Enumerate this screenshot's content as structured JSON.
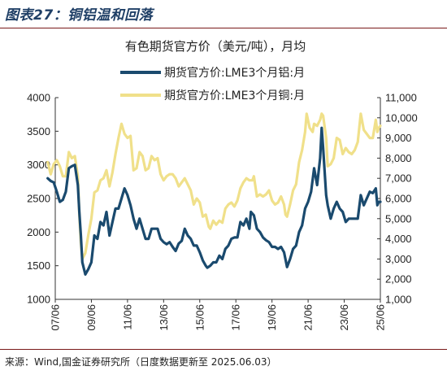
{
  "figure": {
    "title": "图表27：铜铝温和回落",
    "source": "来源：Wind,国金证券研究所（日度数据更新至 2025.06.03）"
  },
  "chart_data": {
    "type": "line",
    "title": "有色期货官方价（美元/吨），月均",
    "x_tick_labels": [
      "07/06",
      "09/06",
      "11/06",
      "13/06",
      "15/06",
      "17/06",
      "19/06",
      "21/06",
      "23/06",
      "25/06"
    ],
    "x_range": [
      "2007-06",
      "2025-06"
    ],
    "y_left": {
      "ylim": [
        1000,
        4000
      ],
      "ticks": [
        1000,
        1500,
        2000,
        2500,
        3000,
        3500,
        4000
      ]
    },
    "y_right": {
      "ylim": [
        1000,
        11000
      ],
      "ticks": [
        "1,000",
        "2,000",
        "3,000",
        "4,000",
        "5,000",
        "6,000",
        "7,000",
        "8,000",
        "9,000",
        "10,000",
        "11,000"
      ]
    },
    "legend_placement": "top",
    "grid": false,
    "series": [
      {
        "name": "期货官方价:LME3个月铝:月",
        "axis": "left",
        "color": "#1a4a6e",
        "points": [
          [
            "2007-01",
            2800
          ],
          [
            "2007-03",
            2760
          ],
          [
            "2007-05",
            2740
          ],
          [
            "2007-07",
            2600
          ],
          [
            "2007-09",
            2450
          ],
          [
            "2007-11",
            2480
          ],
          [
            "2008-01",
            2600
          ],
          [
            "2008-03",
            2950
          ],
          [
            "2008-05",
            2980
          ],
          [
            "2008-07",
            3000
          ],
          [
            "2008-09",
            2700
          ],
          [
            "2008-10",
            2300
          ],
          [
            "2008-11",
            1950
          ],
          [
            "2008-12",
            1550
          ],
          [
            "2009-02",
            1370
          ],
          [
            "2009-04",
            1450
          ],
          [
            "2009-06",
            1550
          ],
          [
            "2009-08",
            1950
          ],
          [
            "2009-10",
            1900
          ],
          [
            "2009-12",
            2150
          ],
          [
            "2010-02",
            2100
          ],
          [
            "2010-04",
            2300
          ],
          [
            "2010-06",
            1950
          ],
          [
            "2010-08",
            2150
          ],
          [
            "2010-10",
            2350
          ],
          [
            "2010-12",
            2350
          ],
          [
            "2011-02",
            2500
          ],
          [
            "2011-04",
            2650
          ],
          [
            "2011-06",
            2550
          ],
          [
            "2011-08",
            2400
          ],
          [
            "2011-10",
            2200
          ],
          [
            "2011-12",
            2050
          ],
          [
            "2012-02",
            2200
          ],
          [
            "2012-04",
            2050
          ],
          [
            "2012-06",
            1900
          ],
          [
            "2012-08",
            1900
          ],
          [
            "2012-10",
            2050
          ],
          [
            "2012-12",
            2050
          ],
          [
            "2013-02",
            2050
          ],
          [
            "2013-04",
            1900
          ],
          [
            "2013-06",
            1850
          ],
          [
            "2013-08",
            1820
          ],
          [
            "2013-10",
            1850
          ],
          [
            "2013-12",
            1780
          ],
          [
            "2014-02",
            1720
          ],
          [
            "2014-04",
            1830
          ],
          [
            "2014-06",
            1870
          ],
          [
            "2014-08",
            2050
          ],
          [
            "2014-10",
            1950
          ],
          [
            "2014-12",
            1900
          ],
          [
            "2015-02",
            1800
          ],
          [
            "2015-04",
            1800
          ],
          [
            "2015-06",
            1700
          ],
          [
            "2015-08",
            1580
          ],
          [
            "2015-10",
            1500
          ],
          [
            "2015-11",
            1470
          ],
          [
            "2016-01",
            1500
          ],
          [
            "2016-03",
            1550
          ],
          [
            "2016-05",
            1550
          ],
          [
            "2016-07",
            1650
          ],
          [
            "2016-09",
            1600
          ],
          [
            "2016-11",
            1750
          ],
          [
            "2017-01",
            1800
          ],
          [
            "2017-03",
            1900
          ],
          [
            "2017-05",
            1920
          ],
          [
            "2017-07",
            1920
          ],
          [
            "2017-09",
            2150
          ],
          [
            "2017-11",
            2100
          ],
          [
            "2018-01",
            2200
          ],
          [
            "2018-03",
            2050
          ],
          [
            "2018-04",
            2300
          ],
          [
            "2018-06",
            2250
          ],
          [
            "2018-08",
            2050
          ],
          [
            "2018-10",
            2000
          ],
          [
            "2018-12",
            1920
          ],
          [
            "2019-02",
            1880
          ],
          [
            "2019-04",
            1850
          ],
          [
            "2019-06",
            1780
          ],
          [
            "2019-08",
            1780
          ],
          [
            "2019-10",
            1750
          ],
          [
            "2019-12",
            1780
          ],
          [
            "2020-02",
            1700
          ],
          [
            "2020-04",
            1480
          ],
          [
            "2020-06",
            1600
          ],
          [
            "2020-08",
            1750
          ],
          [
            "2020-10",
            1800
          ],
          [
            "2020-12",
            2000
          ],
          [
            "2021-02",
            2100
          ],
          [
            "2021-04",
            2350
          ],
          [
            "2021-06",
            2450
          ],
          [
            "2021-08",
            2600
          ],
          [
            "2021-10",
            2950
          ],
          [
            "2021-12",
            2700
          ],
          [
            "2022-02",
            3100
          ],
          [
            "2022-03",
            3550
          ],
          [
            "2022-04",
            3250
          ],
          [
            "2022-06",
            2550
          ],
          [
            "2022-07",
            2400
          ],
          [
            "2022-09",
            2200
          ],
          [
            "2022-11",
            2350
          ],
          [
            "2023-01",
            2450
          ],
          [
            "2023-03",
            2350
          ],
          [
            "2023-05",
            2300
          ],
          [
            "2023-07",
            2150
          ],
          [
            "2023-09",
            2200
          ],
          [
            "2023-11",
            2200
          ],
          [
            "2024-01",
            2200
          ],
          [
            "2024-03",
            2200
          ],
          [
            "2024-05",
            2550
          ],
          [
            "2024-07",
            2400
          ],
          [
            "2024-09",
            2500
          ],
          [
            "2024-11",
            2600
          ],
          [
            "2025-01",
            2580
          ],
          [
            "2025-03",
            2650
          ],
          [
            "2025-04",
            2400
          ],
          [
            "2025-05",
            2450
          ],
          [
            "2025-06",
            2450
          ]
        ]
      },
      {
        "name": "期货官方价:LME3个月铜:月",
        "axis": "right",
        "color": "#f0e08a",
        "points": [
          [
            "2007-01",
            7800
          ],
          [
            "2007-03",
            7200
          ],
          [
            "2007-05",
            7700
          ],
          [
            "2007-07",
            7900
          ],
          [
            "2007-09",
            7600
          ],
          [
            "2007-11",
            7100
          ],
          [
            "2008-01",
            7100
          ],
          [
            "2008-03",
            8300
          ],
          [
            "2008-05",
            8000
          ],
          [
            "2008-07",
            8100
          ],
          [
            "2008-09",
            7100
          ],
          [
            "2008-10",
            5200
          ],
          [
            "2008-11",
            3800
          ],
          [
            "2008-12",
            3000
          ],
          [
            "2009-02",
            3300
          ],
          [
            "2009-04",
            4200
          ],
          [
            "2009-06",
            5000
          ],
          [
            "2009-08",
            6300
          ],
          [
            "2009-10",
            6400
          ],
          [
            "2009-12",
            6900
          ],
          [
            "2010-02",
            7000
          ],
          [
            "2010-04",
            7400
          ],
          [
            "2010-06",
            6600
          ],
          [
            "2010-08",
            7300
          ],
          [
            "2010-10",
            8200
          ],
          [
            "2010-12",
            9000
          ],
          [
            "2011-02",
            9700
          ],
          [
            "2011-04",
            9200
          ],
          [
            "2011-06",
            9000
          ],
          [
            "2011-08",
            9100
          ],
          [
            "2011-10",
            7400
          ],
          [
            "2011-12",
            7500
          ],
          [
            "2012-02",
            8300
          ],
          [
            "2012-04",
            8100
          ],
          [
            "2012-06",
            7400
          ],
          [
            "2012-08",
            7500
          ],
          [
            "2012-10",
            8100
          ],
          [
            "2012-12",
            7900
          ],
          [
            "2013-02",
            8000
          ],
          [
            "2013-04",
            7200
          ],
          [
            "2013-06",
            6900
          ],
          [
            "2013-08",
            7100
          ],
          [
            "2013-10",
            7200
          ],
          [
            "2013-12",
            7200
          ],
          [
            "2014-02",
            7000
          ],
          [
            "2014-04",
            6600
          ],
          [
            "2014-06",
            6800
          ],
          [
            "2014-08",
            7000
          ],
          [
            "2014-10",
            6700
          ],
          [
            "2014-12",
            6400
          ],
          [
            "2015-02",
            5700
          ],
          [
            "2015-04",
            6000
          ],
          [
            "2015-06",
            5800
          ],
          [
            "2015-08",
            5100
          ],
          [
            "2015-10",
            5200
          ],
          [
            "2015-12",
            4600
          ],
          [
            "2016-01",
            4500
          ],
          [
            "2016-03",
            4900
          ],
          [
            "2016-05",
            4700
          ],
          [
            "2016-07",
            4900
          ],
          [
            "2016-09",
            4800
          ],
          [
            "2016-11",
            5500
          ],
          [
            "2017-01",
            5700
          ],
          [
            "2017-03",
            5800
          ],
          [
            "2017-05",
            5600
          ],
          [
            "2017-07",
            5900
          ],
          [
            "2017-09",
            6500
          ],
          [
            "2017-11",
            6800
          ],
          [
            "2018-01",
            7000
          ],
          [
            "2018-03",
            6900
          ],
          [
            "2018-05",
            6900
          ],
          [
            "2018-06",
            7100
          ],
          [
            "2018-08",
            6100
          ],
          [
            "2018-10",
            6200
          ],
          [
            "2018-12",
            6100
          ],
          [
            "2019-02",
            6200
          ],
          [
            "2019-04",
            6400
          ],
          [
            "2019-06",
            5900
          ],
          [
            "2019-08",
            5700
          ],
          [
            "2019-10",
            5800
          ],
          [
            "2019-12",
            6100
          ],
          [
            "2020-02",
            5700
          ],
          [
            "2020-03",
            5200
          ],
          [
            "2020-04",
            5100
          ],
          [
            "2020-06",
            5700
          ],
          [
            "2020-08",
            6400
          ],
          [
            "2020-10",
            6700
          ],
          [
            "2020-12",
            7800
          ],
          [
            "2021-02",
            8400
          ],
          [
            "2021-04",
            9300
          ],
          [
            "2021-05",
            10200
          ],
          [
            "2021-07",
            9500
          ],
          [
            "2021-09",
            9300
          ],
          [
            "2021-10",
            9700
          ],
          [
            "2021-12",
            9600
          ],
          [
            "2022-02",
            9900
          ],
          [
            "2022-03",
            10200
          ],
          [
            "2022-04",
            10100
          ],
          [
            "2022-06",
            9000
          ],
          [
            "2022-07",
            7600
          ],
          [
            "2022-09",
            7700
          ],
          [
            "2022-11",
            8000
          ],
          [
            "2023-01",
            9000
          ],
          [
            "2023-03",
            8900
          ],
          [
            "2023-05",
            8200
          ],
          [
            "2023-07",
            8500
          ],
          [
            "2023-09",
            8300
          ],
          [
            "2023-11",
            8200
          ],
          [
            "2024-01",
            8400
          ],
          [
            "2024-03",
            8800
          ],
          [
            "2024-05",
            10200
          ],
          [
            "2024-07",
            9400
          ],
          [
            "2024-09",
            9200
          ],
          [
            "2024-11",
            9000
          ],
          [
            "2025-01",
            9000
          ],
          [
            "2025-03",
            9900
          ],
          [
            "2025-04",
            9300
          ],
          [
            "2025-05",
            9500
          ],
          [
            "2025-06",
            9600
          ]
        ]
      }
    ]
  }
}
